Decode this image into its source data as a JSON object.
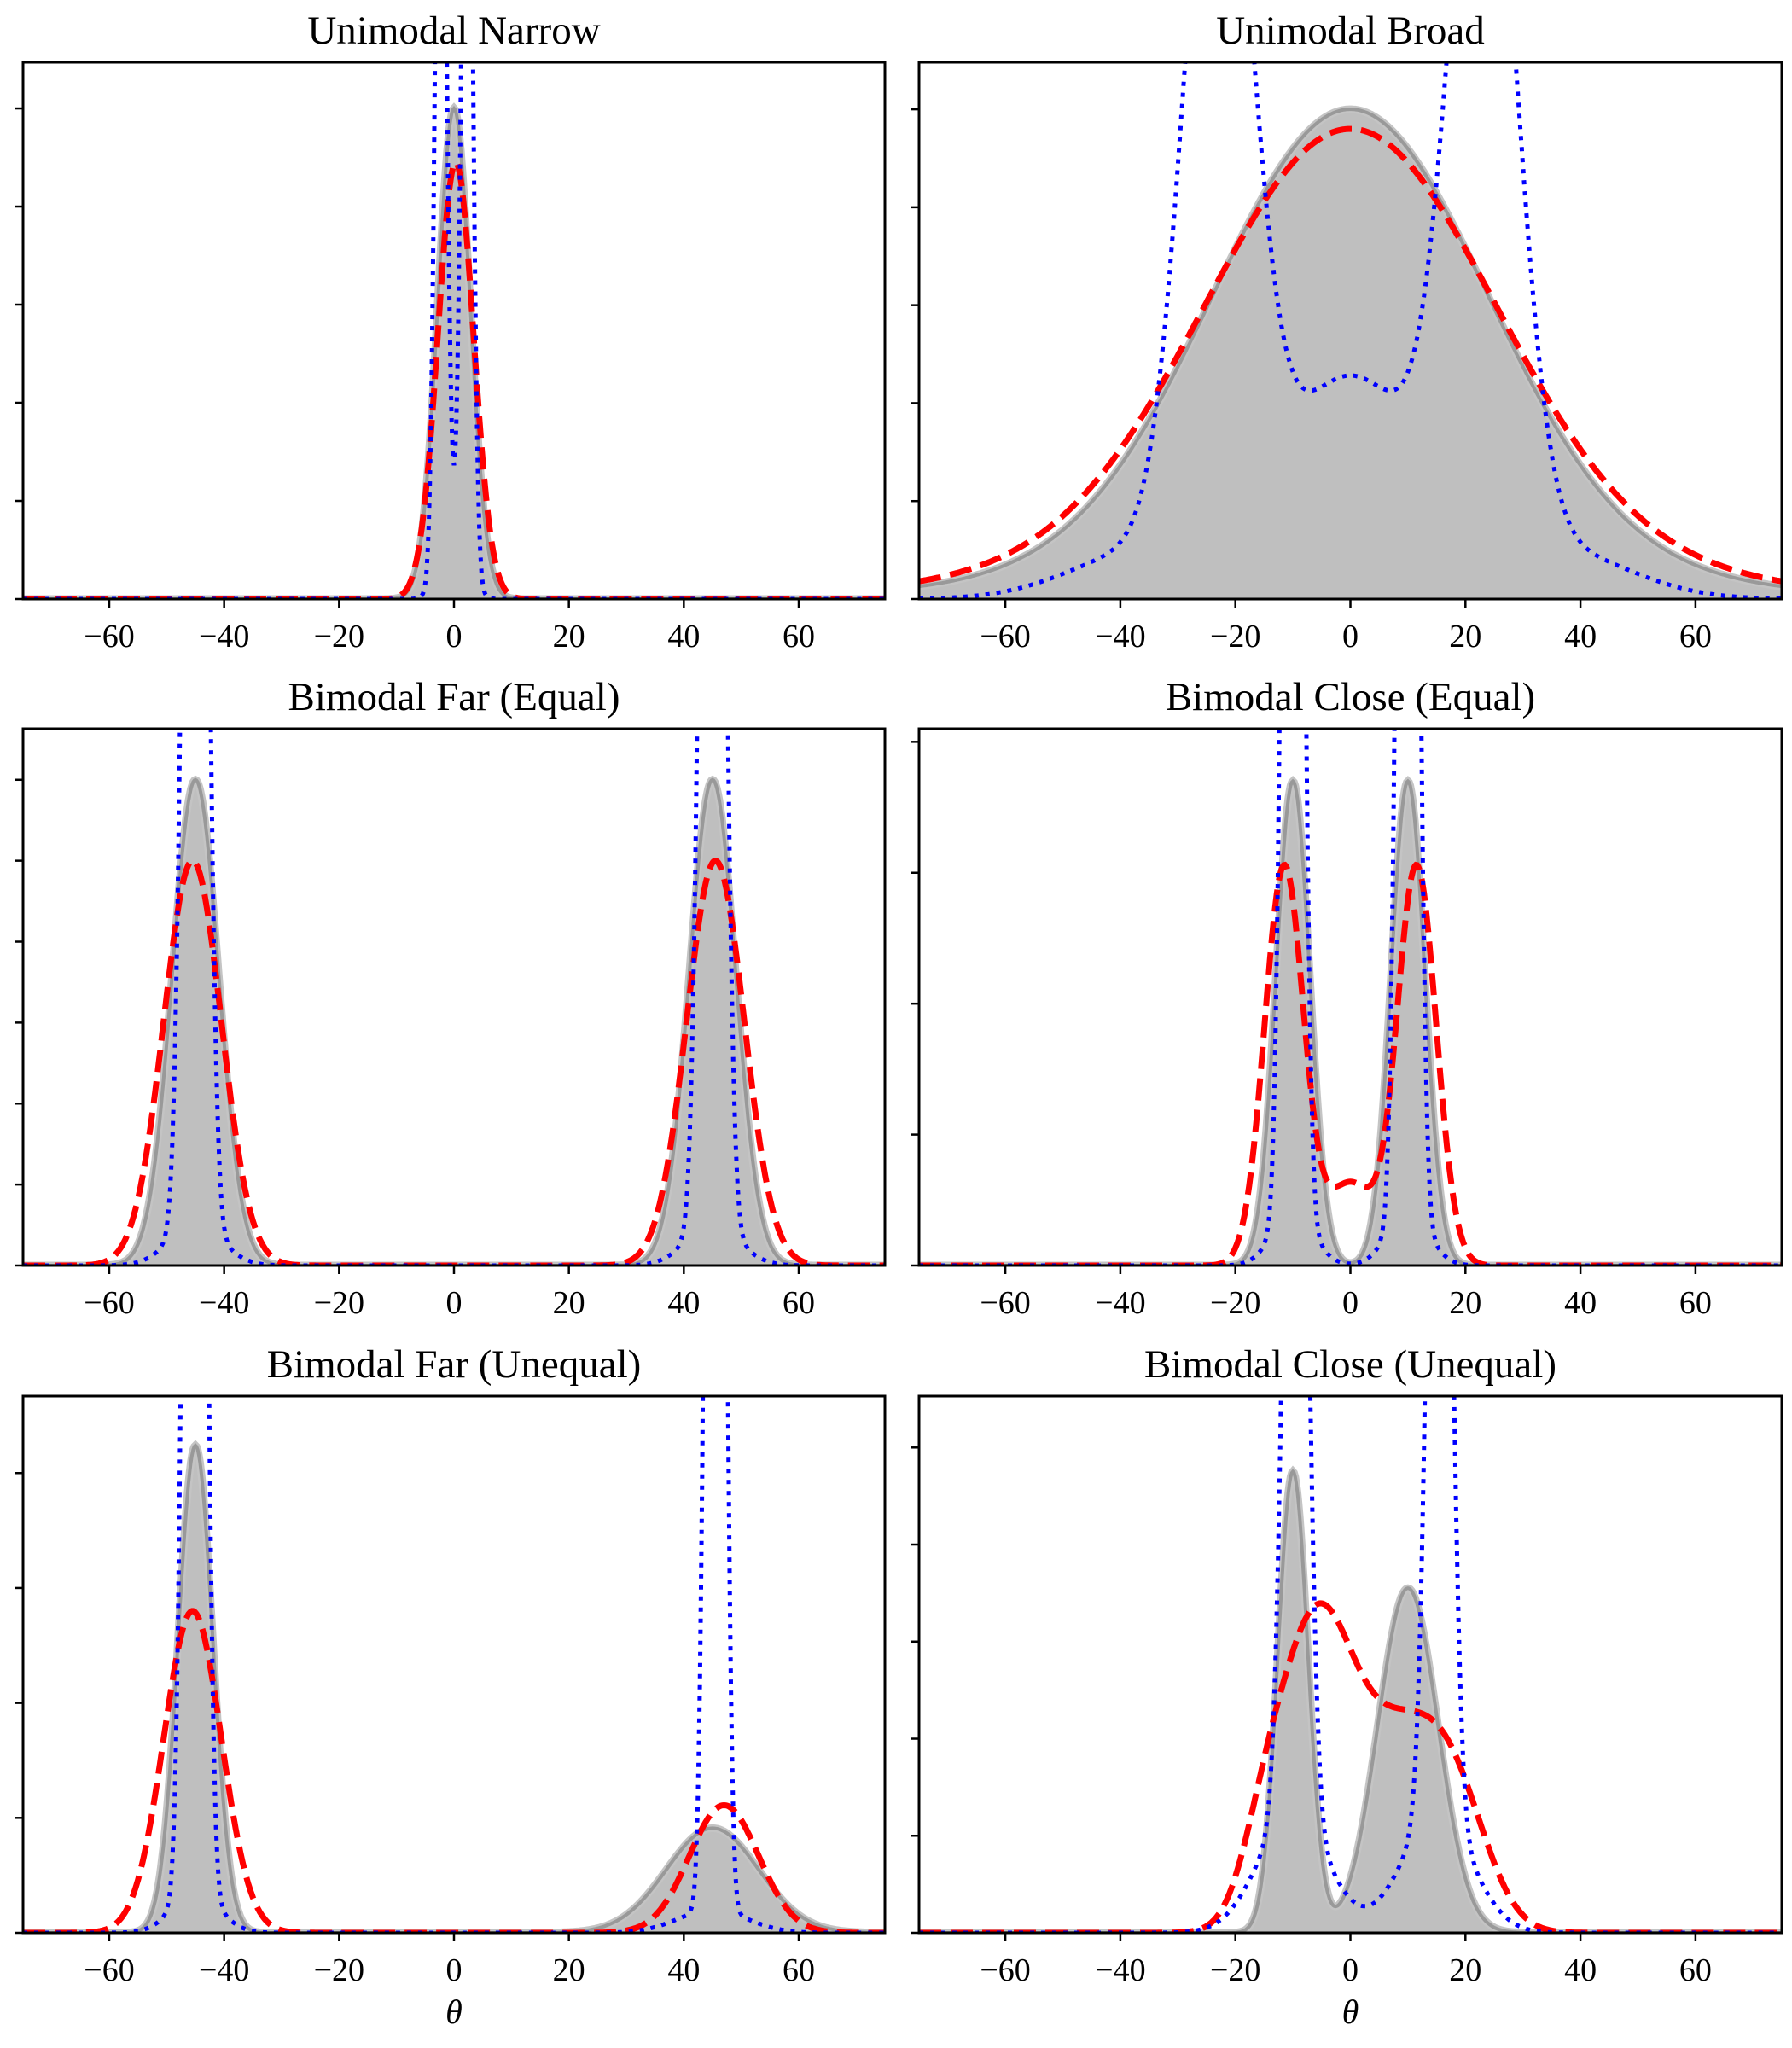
{
  "chart_data": [
    {
      "type": "line",
      "title": "Unimodal Narrow",
      "xlabel": "",
      "xlim": [
        -75,
        75
      ],
      "ylim": [
        0,
        5.47
      ],
      "xticks": [
        -60,
        -40,
        -20,
        0,
        20,
        40,
        60
      ],
      "xtick_labels": [
        "−60",
        "−40",
        "−20",
        "0",
        "20",
        "40",
        "60"
      ],
      "ytick_count": 6,
      "y_tick_labels_shown": false,
      "series": [
        {
          "style": "gray-filled",
          "color": "#999999",
          "fill": "#bfbfbf",
          "components": [
            {
              "mu": 0,
              "sigma": 2.8,
              "amp": 5.0
            }
          ]
        },
        {
          "style": "red-dashed",
          "color": "#ff0000",
          "components": [
            {
              "mu": 0.3,
              "sigma": 3.1,
              "amp": 4.45
            }
          ]
        },
        {
          "style": "blue-dotted",
          "color": "#0000ff",
          "components": [
            {
              "mu": -2.3,
              "sigma": 0.9,
              "amp": 10
            },
            {
              "mu": 2.3,
              "sigma": 0.9,
              "amp": 10
            },
            {
              "mu": 0,
              "sigma": 2.2,
              "amp": 0.6
            }
          ]
        }
      ]
    },
    {
      "type": "line",
      "title": "Unimodal Broad",
      "xlabel": "",
      "xlim": [
        -75,
        75
      ],
      "ylim": [
        0,
        5.48
      ],
      "xticks": [
        -60,
        -40,
        -20,
        0,
        20,
        40,
        60
      ],
      "xtick_labels": [
        "−60",
        "−40",
        "−20",
        "0",
        "20",
        "40",
        "60"
      ],
      "ytick_count": 6,
      "y_tick_labels_shown": false,
      "series": [
        {
          "style": "gray-filled",
          "color": "#999999",
          "fill": "#bfbfbf",
          "components": [
            {
              "mu": 0,
              "sigma": 23.6,
              "amp": 4.6
            },
            {
              "mu": 0,
              "sigma": 45,
              "amp": 0.4
            }
          ]
        },
        {
          "style": "red-dashed",
          "color": "#ff0000",
          "components": [
            {
              "mu": 0,
              "sigma": 25,
              "amp": 4.35
            },
            {
              "mu": 0,
              "sigma": 48,
              "amp": 0.45
            }
          ]
        },
        {
          "style": "blue-dotted",
          "color": "#0000ff",
          "components": [
            {
              "mu": -23,
              "sigma": 5.8,
              "amp": 8
            },
            {
              "mu": 23,
              "sigma": 5.8,
              "amp": 8
            },
            {
              "mu": 0,
              "sigma": 12,
              "amp": 2.25
            },
            {
              "mu": -35,
              "sigma": 13,
              "amp": 0.5
            },
            {
              "mu": 35,
              "sigma": 13,
              "amp": 0.5
            }
          ]
        }
      ]
    },
    {
      "type": "line",
      "title": "Bimodal Far (Equal)",
      "xlabel": "",
      "xlim": [
        -75,
        75
      ],
      "ylim": [
        0,
        6.63
      ],
      "xticks": [
        -60,
        -40,
        -20,
        0,
        20,
        40,
        60
      ],
      "xtick_labels": [
        "−60",
        "−40",
        "−20",
        "0",
        "20",
        "40",
        "60"
      ],
      "ytick_count": 7,
      "y_tick_labels_shown": false,
      "series": [
        {
          "style": "gray-filled",
          "color": "#999999",
          "fill": "#bfbfbf",
          "components": [
            {
              "mu": -45,
              "sigma": 4.0,
              "amp": 6.0
            },
            {
              "mu": 45,
              "sigma": 4.0,
              "amp": 6.0
            }
          ]
        },
        {
          "style": "red-dashed",
          "color": "#ff0000",
          "components": [
            {
              "mu": -45.5,
              "sigma": 5.0,
              "amp": 5.0
            },
            {
              "mu": 45.5,
              "sigma": 5.0,
              "amp": 5.0
            }
          ]
        },
        {
          "style": "blue-dotted",
          "color": "#0000ff",
          "components": [
            {
              "mu": -46,
              "sigma": 1.4,
              "amp": 12
            },
            {
              "mu": -44,
              "sigma": 1.4,
              "amp": 12
            },
            {
              "mu": 44,
              "sigma": 1.4,
              "amp": 12
            },
            {
              "mu": 46,
              "sigma": 1.4,
              "amp": 12
            },
            {
              "mu": -45,
              "sigma": 4.5,
              "amp": 0.5
            },
            {
              "mu": 45,
              "sigma": 4.5,
              "amp": 0.5
            }
          ]
        }
      ]
    },
    {
      "type": "line",
      "title": "Bimodal Close (Equal)",
      "xlabel": "",
      "xlim": [
        -75,
        75
      ],
      "ylim": [
        0,
        4.1
      ],
      "xticks": [
        -60,
        -40,
        -20,
        0,
        20,
        40,
        60
      ],
      "xtick_labels": [
        "−60",
        "−40",
        "−20",
        "0",
        "20",
        "40",
        "60"
      ],
      "ytick_count": 5,
      "y_tick_labels_shown": false,
      "series": [
        {
          "style": "gray-filled",
          "color": "#999999",
          "fill": "#bfbfbf",
          "components": [
            {
              "mu": -10,
              "sigma": 2.9,
              "amp": 3.7
            },
            {
              "mu": 10,
              "sigma": 2.9,
              "amp": 3.7
            }
          ]
        },
        {
          "style": "red-dashed",
          "color": "#ff0000",
          "components": [
            {
              "mu": -11.5,
              "sigma": 3.4,
              "amp": 3.05
            },
            {
              "mu": 11.5,
              "sigma": 3.4,
              "amp": 3.05
            },
            {
              "mu": 0,
              "sigma": 4,
              "amp": 0.62
            }
          ]
        },
        {
          "style": "blue-dotted",
          "color": "#0000ff",
          "components": [
            {
              "mu": -10.8,
              "sigma": 1.2,
              "amp": 8
            },
            {
              "mu": -9.2,
              "sigma": 1.2,
              "amp": 8
            },
            {
              "mu": 9.2,
              "sigma": 1.2,
              "amp": 8
            },
            {
              "mu": 10.8,
              "sigma": 1.2,
              "amp": 8
            },
            {
              "mu": -10,
              "sigma": 3.5,
              "amp": 0.4
            },
            {
              "mu": 10,
              "sigma": 3.5,
              "amp": 0.4
            }
          ]
        }
      ]
    },
    {
      "type": "line",
      "title": "Bimodal Far (Unequal)",
      "xlabel": "θ",
      "xlim": [
        -75,
        75
      ],
      "ylim": [
        0,
        4.67
      ],
      "xticks": [
        -60,
        -40,
        -20,
        0,
        20,
        40,
        60
      ],
      "xtick_labels": [
        "−60",
        "−40",
        "−20",
        "0",
        "20",
        "40",
        "60"
      ],
      "ytick_count": 5,
      "y_tick_labels_shown": false,
      "series": [
        {
          "style": "gray-filled",
          "color": "#999999",
          "fill": "#bfbfbf",
          "components": [
            {
              "mu": -45,
              "sigma": 3.0,
              "amp": 4.24
            },
            {
              "mu": 45,
              "sigma": 8.0,
              "amp": 0.91
            }
          ]
        },
        {
          "style": "red-dashed",
          "color": "#ff0000",
          "components": [
            {
              "mu": -45.5,
              "sigma": 5.0,
              "amp": 2.8
            },
            {
              "mu": 47,
              "sigma": 6.0,
              "amp": 1.11
            }
          ]
        },
        {
          "style": "blue-dotted",
          "color": "#0000ff",
          "components": [
            {
              "mu": -46,
              "sigma": 1.2,
              "amp": 10
            },
            {
              "mu": -44.2,
              "sigma": 1.2,
              "amp": 10
            },
            {
              "mu": 44.6,
              "sigma": 1.0,
              "amp": 10
            },
            {
              "mu": 46.4,
              "sigma": 1.0,
              "amp": 10
            },
            {
              "mu": -45,
              "sigma": 4,
              "amp": 0.35
            },
            {
              "mu": 45,
              "sigma": 6,
              "amp": 0.2
            }
          ]
        }
      ]
    },
    {
      "type": "line",
      "title": "Bimodal Close (Unequal)",
      "xlabel": "θ",
      "xlim": [
        -75,
        75
      ],
      "ylim": [
        0,
        5.53
      ],
      "xticks": [
        -60,
        -40,
        -20,
        0,
        20,
        40,
        60
      ],
      "xtick_labels": [
        "−60",
        "−40",
        "−20",
        "0",
        "20",
        "40",
        "60"
      ],
      "ytick_count": 6,
      "y_tick_labels_shown": false,
      "series": [
        {
          "style": "gray-filled",
          "color": "#999999",
          "fill": "#bfbfbf",
          "components": [
            {
              "mu": -10,
              "sigma": 2.6,
              "amp": 4.75
            },
            {
              "mu": 10,
              "sigma": 5.2,
              "amp": 3.55
            }
          ]
        },
        {
          "style": "red-dashed",
          "color": "#ff0000",
          "components": [
            {
              "mu": -6,
              "sigma": 6.5,
              "amp": 3.1
            },
            {
              "mu": 8,
              "sigma": 7,
              "amp": 1.7
            },
            {
              "mu": 18,
              "sigma": 6,
              "amp": 1.25
            },
            {
              "mu": -15,
              "sigma": 4,
              "amp": 0.6
            }
          ]
        },
        {
          "style": "blue-dotted",
          "color": "#0000ff",
          "components": [
            {
              "mu": -9.5,
              "sigma": 1.8,
              "amp": 12
            },
            {
              "mu": 15.5,
              "sigma": 1.8,
              "amp": 12
            },
            {
              "mu": -10,
              "sigma": 6,
              "amp": 1.2
            },
            {
              "mu": 15,
              "sigma": 6,
              "amp": 1.2
            }
          ]
        }
      ]
    }
  ]
}
